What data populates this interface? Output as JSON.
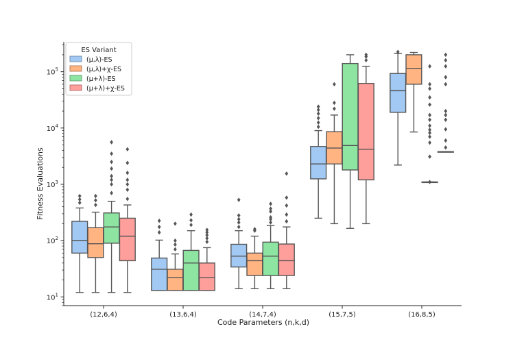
{
  "chart_data": {
    "type": "boxplot",
    "title": "",
    "xlabel": "Code Parameters (n,k,d)",
    "ylabel": "Fitness Evaluations",
    "yscale": "log",
    "ylim": [
      7,
      340000
    ],
    "y_ticks": [
      {
        "value": 10,
        "base": "10",
        "exp": "1"
      },
      {
        "value": 100,
        "base": "10",
        "exp": "2"
      },
      {
        "value": 1000,
        "base": "10",
        "exp": "3"
      },
      {
        "value": 10000,
        "base": "10",
        "exp": "4"
      },
      {
        "value": 100000,
        "base": "10",
        "exp": "5"
      }
    ],
    "categories": [
      "(12,6,4)",
      "(13,6,4)",
      "(14,7,4)",
      "(15,7,5)",
      "(16,8,5)"
    ],
    "legend": {
      "title": "ES Variant",
      "position": "top-left"
    },
    "series": [
      {
        "name": "(μ,λ)-ES",
        "color": "#a1c9f4",
        "boxes": [
          {
            "whislo": 12,
            "q1": 60,
            "med": 100,
            "q3": 220,
            "whishi": 380,
            "fliers": [
              470,
              540,
              620
            ]
          },
          {
            "whislo": 13,
            "q1": 13,
            "med": 31,
            "q3": 49,
            "whishi": 102,
            "fliers": [
              140,
              175,
              225
            ]
          },
          {
            "whislo": 14,
            "q1": 34,
            "med": 53,
            "q3": 86,
            "whishi": 150,
            "fliers": [
              175,
              210,
              240,
              280,
              530
            ]
          },
          {
            "whislo": 250,
            "q1": 1250,
            "med": 2300,
            "q3": 4700,
            "whishi": 9000,
            "fliers": [
              10500,
              12500,
              15000,
              18000,
              21000,
              24000
            ]
          },
          {
            "whislo": 2200,
            "q1": 19000,
            "med": 46000,
            "q3": 93000,
            "whishi": 210000,
            "fliers": [
              225000
            ]
          }
        ]
      },
      {
        "name": "(μ,λ)+χ-ES",
        "color": "#ffb482",
        "boxes": [
          {
            "whislo": 12,
            "q1": 50,
            "med": 88,
            "q3": 170,
            "whishi": 320,
            "fliers": [
              430,
              520,
              620
            ]
          },
          {
            "whislo": 13,
            "q1": 13,
            "med": 22,
            "q3": 31,
            "whishi": 58,
            "fliers": [
              70,
              85,
              100,
              200
            ]
          },
          {
            "whislo": 14,
            "q1": 24,
            "med": 44,
            "q3": 60,
            "whishi": 120,
            "fliers": [
              150,
              160
            ]
          },
          {
            "whislo": 200,
            "q1": 2300,
            "med": 4400,
            "q3": 8600,
            "whishi": 17000,
            "fliers": [
              22000,
              28000,
              60000
            ]
          },
          {
            "whislo": 8500,
            "q1": 60000,
            "med": 115000,
            "q3": 200000,
            "whishi": 220000,
            "fliers": []
          }
        ]
      },
      {
        "name": "(μ+λ)-ES",
        "color": "#8de5a1",
        "boxes": [
          {
            "whislo": 12,
            "q1": 90,
            "med": 175,
            "q3": 310,
            "whishi": 500,
            "fliers": [
              700,
              1000,
              1200,
              1400,
              1900,
              2500,
              3500,
              5600
            ]
          },
          {
            "whislo": 13,
            "q1": 13,
            "med": 40,
            "q3": 67,
            "whishi": 150,
            "fliers": [
              190,
              230,
              290
            ]
          },
          {
            "whislo": 14,
            "q1": 24,
            "med": 53,
            "q3": 94,
            "whishi": 185,
            "fliers": [
              210,
              240,
              260,
              330,
              370,
              450
            ]
          },
          {
            "whislo": 165,
            "q1": 1800,
            "med": 4900,
            "q3": 140000,
            "whishi": 200000,
            "fliers": []
          },
          {
            "whislo": 1100,
            "q1": 1100,
            "med": 1100,
            "q3": 1100,
            "whishi": 1100,
            "fliers": [
              1100,
              3100,
              5500,
              7000,
              8200,
              9300,
              11000,
              14000,
              17000,
              26000,
              35000,
              50000,
              60000,
              125000
            ]
          }
        ]
      },
      {
        "name": "(μ+λ)+χ-ES",
        "color": "#ff9f9b",
        "boxes": [
          {
            "whislo": 12,
            "q1": 44,
            "med": 120,
            "q3": 250,
            "whishi": 430,
            "fliers": [
              550,
              800,
              1000,
              1200,
              1600,
              2400,
              4200
            ]
          },
          {
            "whislo": 13,
            "q1": 13,
            "med": 22,
            "q3": 40,
            "whishi": 75,
            "fliers": [
              95,
              110,
              125,
              140,
              155
            ]
          },
          {
            "whislo": 14,
            "q1": 24,
            "med": 44,
            "q3": 87,
            "whishi": 175,
            "fliers": [
              220,
              290,
              420,
              580,
              1550
            ]
          },
          {
            "whislo": 200,
            "q1": 1200,
            "med": 4200,
            "q3": 62000,
            "whishi": 125000,
            "fliers": [
              160000,
              185000,
              200000
            ]
          },
          {
            "whislo": 3800,
            "q1": 3800,
            "med": 3800,
            "q3": 3800,
            "whishi": 3800,
            "fliers": [
              4500,
              6000,
              9500,
              14000,
              17000,
              20000,
              60000,
              80000,
              125000,
              160000,
              200000
            ]
          }
        ]
      }
    ]
  }
}
